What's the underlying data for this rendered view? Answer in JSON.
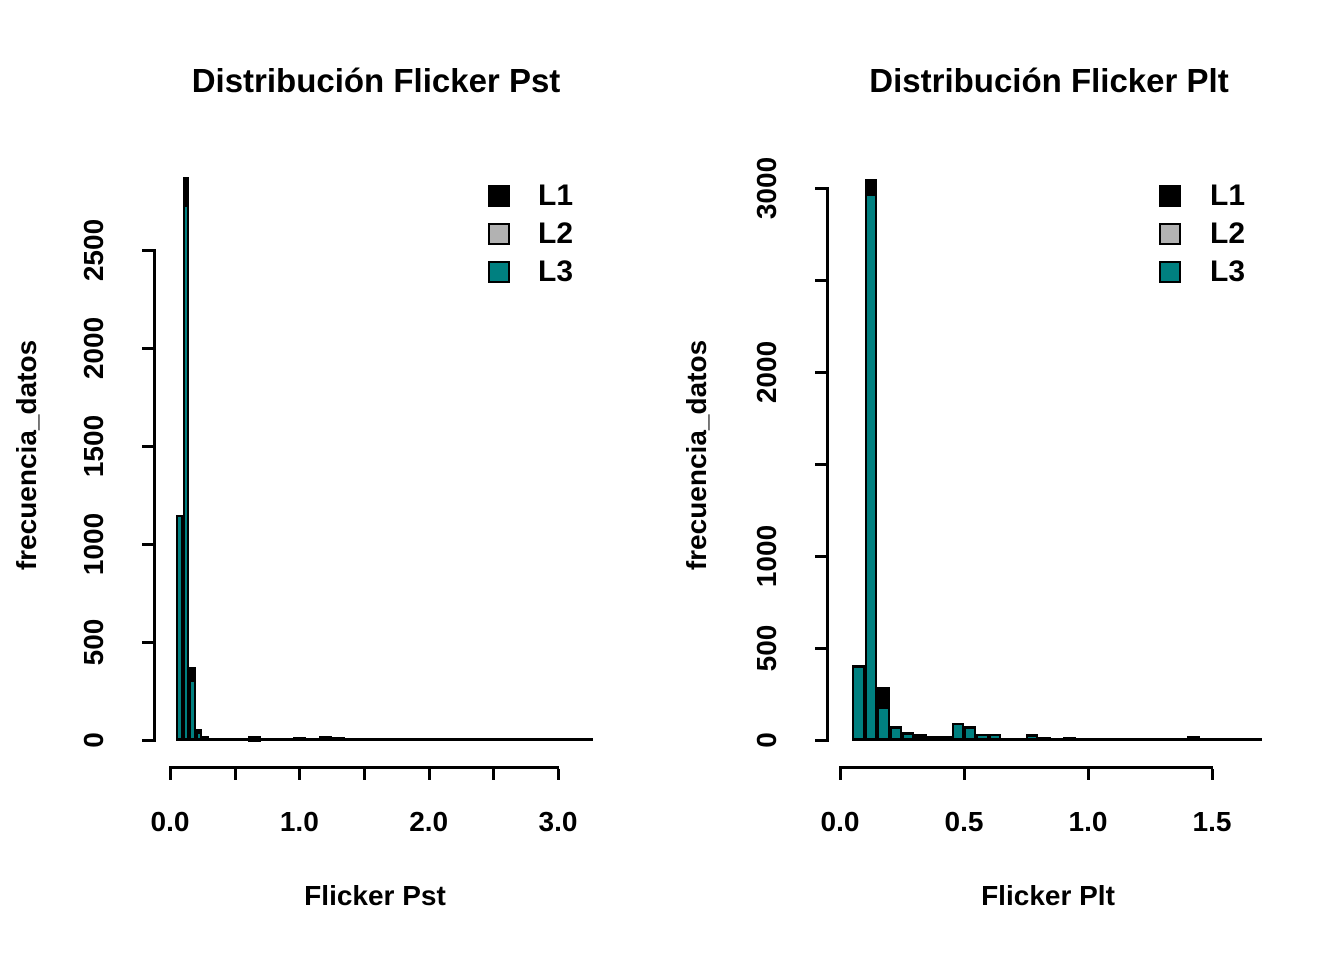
{
  "colors": {
    "background": "#ffffff",
    "axis": "#000000",
    "l1": "#000000",
    "l2": "#b2b2b2",
    "l3": "#008080"
  },
  "legend": {
    "items": [
      {
        "label": "L1",
        "color_key": "l1"
      },
      {
        "label": "L2",
        "color_key": "l2"
      },
      {
        "label": "L3",
        "color_key": "l3"
      }
    ]
  },
  "chart_data": [
    {
      "id": "pst",
      "type": "bar",
      "title": "Distribución Flicker Pst",
      "xlabel": "Flicker Pst",
      "ylabel": "frecuencia_datos",
      "xlim": [
        0,
        3.27
      ],
      "ylim": [
        0,
        2870
      ],
      "bin_width": 0.05,
      "grid": false,
      "legend_position": "top-right",
      "legend_labels": [
        "L1",
        "L2",
        "L3"
      ],
      "x_ticks": [
        {
          "v": 0.0,
          "label": "0.0"
        },
        {
          "v": 0.5,
          "label": ""
        },
        {
          "v": 1.0,
          "label": "1.0"
        },
        {
          "v": 1.5,
          "label": ""
        },
        {
          "v": 2.0,
          "label": "2.0"
        },
        {
          "v": 2.5,
          "label": ""
        },
        {
          "v": 3.0,
          "label": "3.0"
        }
      ],
      "y_ticks": [
        {
          "v": 0,
          "label": "0"
        },
        {
          "v": 500,
          "label": "500"
        },
        {
          "v": 1000,
          "label": "1000"
        },
        {
          "v": 1500,
          "label": "1500"
        },
        {
          "v": 2000,
          "label": "2000"
        },
        {
          "v": 2500,
          "label": "2500"
        }
      ],
      "bars_format": [
        "bin_start",
        "L1_count_black",
        "L3_count_teal"
      ],
      "bars": [
        [
          0.05,
          1150,
          1150
        ],
        [
          0.1,
          2870,
          2730
        ],
        [
          0.15,
          372,
          306
        ],
        [
          0.2,
          55,
          41
        ],
        [
          0.25,
          18,
          14
        ],
        [
          0.3,
          8,
          6
        ],
        [
          0.35,
          6,
          5
        ],
        [
          0.4,
          5,
          4
        ],
        [
          0.45,
          5,
          4
        ],
        [
          0.5,
          6,
          5
        ],
        [
          0.55,
          8,
          6
        ],
        [
          0.6,
          20,
          8
        ],
        [
          0.65,
          20,
          8
        ],
        [
          0.7,
          6,
          5
        ],
        [
          0.75,
          6,
          4
        ],
        [
          0.8,
          5,
          4
        ],
        [
          0.85,
          5,
          4
        ],
        [
          0.9,
          5,
          4
        ],
        [
          0.95,
          15,
          5
        ],
        [
          1.0,
          15,
          5
        ],
        [
          1.05,
          6,
          4
        ],
        [
          1.1,
          6,
          4
        ],
        [
          1.15,
          18,
          5
        ],
        [
          1.2,
          18,
          5
        ],
        [
          1.25,
          14,
          5
        ],
        [
          1.3,
          14,
          5
        ]
      ],
      "baseline_start": 0.05,
      "baseline_end": 3.27
    },
    {
      "id": "plt",
      "type": "bar",
      "title": "Distribución Flicker Plt",
      "xlabel": "Flicker Plt",
      "ylabel": "frecuencia_datos",
      "xlim": [
        0,
        1.7
      ],
      "ylim": [
        0,
        3050
      ],
      "bin_width": 0.05,
      "grid": false,
      "legend_position": "top-right",
      "legend_labels": [
        "L1",
        "L2",
        "L3"
      ],
      "x_ticks": [
        {
          "v": 0.0,
          "label": "0.0"
        },
        {
          "v": 0.5,
          "label": "0.5"
        },
        {
          "v": 1.0,
          "label": "1.0"
        },
        {
          "v": 1.5,
          "label": "1.5"
        }
      ],
      "y_ticks": [
        {
          "v": 0,
          "label": "0"
        },
        {
          "v": 500,
          "label": "500"
        },
        {
          "v": 1000,
          "label": "1000"
        },
        {
          "v": 1500,
          "label": ""
        },
        {
          "v": 2000,
          "label": "2000"
        },
        {
          "v": 2500,
          "label": ""
        },
        {
          "v": 3000,
          "label": "3000"
        }
      ],
      "bars_format": [
        "bin_start",
        "L1_count_black",
        "L3_count_teal"
      ],
      "bars": [
        [
          0.05,
          405,
          400
        ],
        [
          0.1,
          3050,
          2970
        ],
        [
          0.15,
          290,
          180
        ],
        [
          0.2,
          75,
          70
        ],
        [
          0.25,
          45,
          40
        ],
        [
          0.3,
          35,
          15
        ],
        [
          0.35,
          20,
          18
        ],
        [
          0.4,
          20,
          18
        ],
        [
          0.45,
          95,
          90
        ],
        [
          0.5,
          75,
          70
        ],
        [
          0.55,
          32,
          30
        ],
        [
          0.6,
          32,
          30
        ],
        [
          0.65,
          12,
          8
        ],
        [
          0.7,
          12,
          8
        ],
        [
          0.75,
          30,
          27
        ],
        [
          0.8,
          17,
          15
        ],
        [
          0.85,
          8,
          5
        ],
        [
          0.9,
          17,
          15
        ],
        [
          0.95,
          6,
          4
        ],
        [
          1.0,
          6,
          4
        ],
        [
          1.05,
          12,
          4
        ],
        [
          1.1,
          12,
          4
        ],
        [
          1.15,
          12,
          4
        ],
        [
          1.2,
          12,
          4
        ],
        [
          1.25,
          4,
          3
        ],
        [
          1.3,
          4,
          3
        ],
        [
          1.35,
          4,
          3
        ],
        [
          1.4,
          24,
          4
        ],
        [
          1.45,
          12,
          4
        ],
        [
          1.5,
          4,
          3
        ],
        [
          1.55,
          8,
          3
        ],
        [
          1.6,
          3,
          2
        ],
        [
          1.65,
          3,
          2
        ]
      ],
      "baseline_start": 0.05,
      "baseline_end": 1.7
    }
  ]
}
